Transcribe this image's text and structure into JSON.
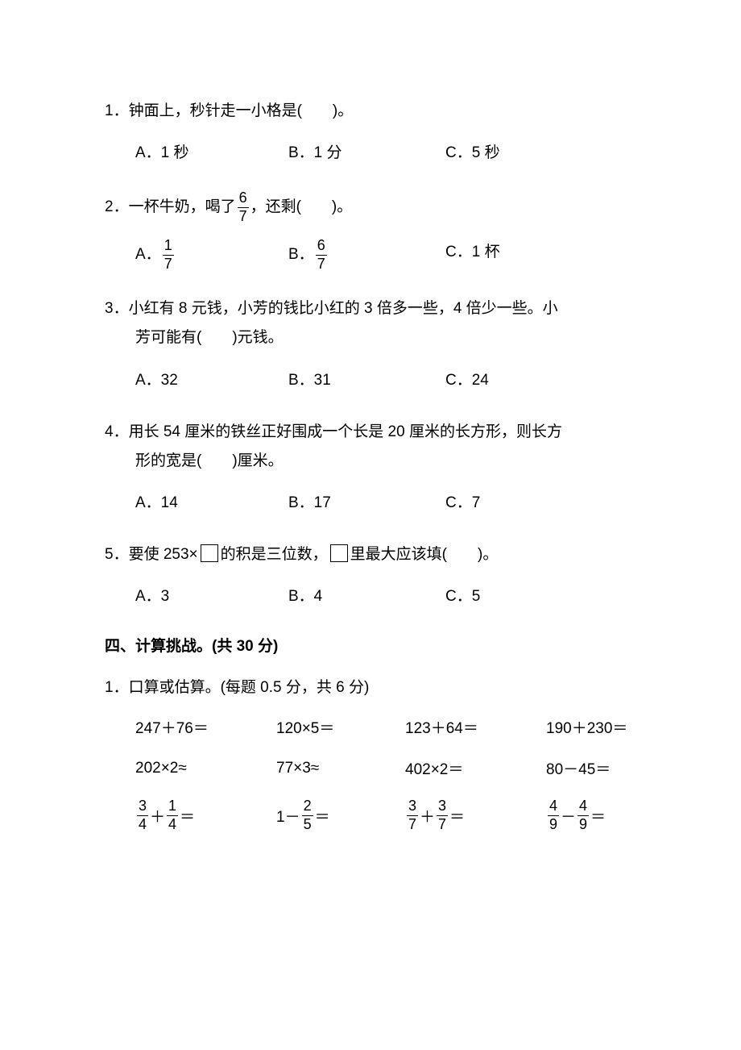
{
  "questions": [
    {
      "number": "1",
      "text": "．钟面上，秒针走一小格是(　　)。",
      "options": {
        "a": "A．1 秒",
        "b": "B．1 分",
        "c": "C．5 秒"
      }
    },
    {
      "number": "2",
      "text_before": "．一杯牛奶，喝了",
      "frac_num": "6",
      "frac_den": "7",
      "text_after": "，还剩(　　)。",
      "options": {
        "a_label": "A．",
        "a_num": "1",
        "a_den": "7",
        "b_label": "B．",
        "b_num": "6",
        "b_den": "7",
        "c": "C．1 杯"
      }
    },
    {
      "number": "3",
      "text_line1": "．小红有 8 元钱，小芳的钱比小红的 3 倍多一些，4 倍少一些。小",
      "text_line2": "芳可能有(　　)元钱。",
      "options": {
        "a": "A．32",
        "b": "B．31",
        "c": "C．24"
      }
    },
    {
      "number": "4",
      "text_line1": "．用长 54 厘米的铁丝正好围成一个长是 20 厘米的长方形，则长方",
      "text_line2": "形的宽是(　　)厘米。",
      "options": {
        "a": "A．14",
        "b": "B．17",
        "c": "C．7"
      }
    },
    {
      "number": "5",
      "text_before": "．要使 253×",
      "text_mid": "的积是三位数，",
      "text_after": "里最大应该填(　　)。",
      "options": {
        "a": "A．3",
        "b": "B．4",
        "c": "C．5"
      }
    }
  ],
  "section4": {
    "header": "四、计算挑战。(共 30 分)",
    "instruction": "1．口算或估算。(每题 0.5 分，共 6 分)",
    "row1": {
      "c1": "247＋76＝",
      "c2": "120×5＝",
      "c3": "123＋64＝",
      "c4": "190＋230＝"
    },
    "row2": {
      "c1": "202×2≈",
      "c2": "77×3≈",
      "c3": "402×2＝",
      "c4": "80－45＝"
    },
    "row3": {
      "c1_n1": "3",
      "c1_d1": "4",
      "c1_op": "＋",
      "c1_n2": "1",
      "c1_d2": "4",
      "c1_eq": "＝",
      "c2_pre": "1－",
      "c2_n": "2",
      "c2_d": "5",
      "c2_eq": "＝",
      "c3_n1": "3",
      "c3_d1": "7",
      "c3_op": "＋",
      "c3_n2": "3",
      "c3_d2": "7",
      "c3_eq": "＝",
      "c4_n1": "4",
      "c4_d1": "9",
      "c4_op": "－",
      "c4_n2": "4",
      "c4_d2": "9",
      "c4_eq": "＝"
    }
  },
  "colors": {
    "text": "#000000",
    "background": "#ffffff"
  },
  "fonts": {
    "body_size": 19,
    "family": "Microsoft YaHei"
  }
}
